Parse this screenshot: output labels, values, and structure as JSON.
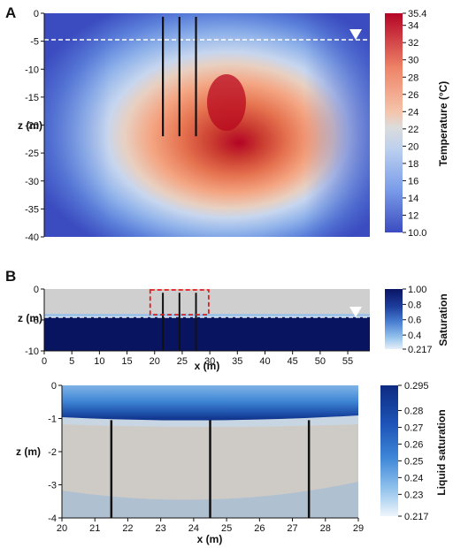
{
  "chart_data": [
    {
      "panel": "A",
      "type": "heatmap",
      "ylabel": "z (m)",
      "ylim": [
        -40,
        0
      ],
      "yticks": [
        0,
        -5,
        -10,
        -15,
        -20,
        -25,
        -30,
        -35,
        -40
      ],
      "ytick_labels": [
        "0",
        "-5",
        "-10",
        "-15",
        "-20",
        "-25",
        "-30",
        "-35",
        "-40"
      ],
      "water_table_z": -5,
      "wells": [
        {
          "x": 21.5,
          "z_bottom": -22
        },
        {
          "x": 24.5,
          "z_bottom": -22
        },
        {
          "x": 27.5,
          "z_bottom": -22
        }
      ],
      "hotspot": {
        "x": 32,
        "z": -16,
        "temperature": 35.4
      },
      "colorbar": {
        "label": "Temperature (°C)",
        "min": 10.0,
        "max": 35.4,
        "ticks": [
          35.4,
          34,
          32,
          30,
          28,
          26,
          24,
          22,
          20,
          18,
          16,
          14,
          12,
          10.0
        ],
        "tick_labels": [
          "35.4",
          "34",
          "32",
          "30",
          "28",
          "26",
          "24",
          "22",
          "20",
          "18",
          "16",
          "14",
          "12",
          "10.0"
        ]
      },
      "colors": [
        "#3b4cc0",
        "#6a8fd8",
        "#9fbfe6",
        "#d9d9d9",
        "#f4b593",
        "#e7704f",
        "#b40426"
      ]
    },
    {
      "panel": "B",
      "type": "heatmap",
      "xlabel": "x (m)",
      "ylabel": "z (m)",
      "xlim": [
        0,
        59
      ],
      "ylim": [
        -10,
        0
      ],
      "xticks": [
        0,
        5,
        10,
        15,
        20,
        25,
        30,
        35,
        40,
        45,
        50,
        55
      ],
      "xtick_labels": [
        "0",
        "5",
        "10",
        "15",
        "20",
        "25",
        "30",
        "35",
        "40",
        "45",
        "50",
        "55"
      ],
      "yticks": [
        0,
        -5,
        -10
      ],
      "ytick_labels": [
        "0",
        "-5",
        "-10"
      ],
      "water_table_z": -5,
      "wells": [
        {
          "x": 21.5
        },
        {
          "x": 24.5
        },
        {
          "x": 27.5
        }
      ],
      "zoom_box": {
        "x": [
          20,
          29
        ],
        "z": [
          -4,
          0
        ]
      },
      "colorbar": {
        "label": "Saturation",
        "min": 0.217,
        "max": 1.0,
        "ticks": [
          1.0,
          0.8,
          0.6,
          0.4,
          0.217
        ],
        "tick_labels": [
          "1.00",
          "0.8",
          "0.6",
          "0.4",
          "0.217"
        ]
      }
    },
    {
      "panel": "zoom",
      "type": "heatmap",
      "xlabel": "x (m)",
      "ylabel": "z (m)",
      "xlim": [
        20,
        29
      ],
      "ylim": [
        -4,
        0
      ],
      "xticks": [
        20,
        21,
        22,
        23,
        24,
        25,
        26,
        27,
        28,
        29
      ],
      "xtick_labels": [
        "20",
        "21",
        "22",
        "23",
        "24",
        "25",
        "26",
        "27",
        "28",
        "29"
      ],
      "yticks": [
        0,
        -1,
        -2,
        -3,
        -4
      ],
      "ytick_labels": [
        "0",
        "-1",
        "-2",
        "-3",
        "-4"
      ],
      "wells": [
        {
          "x": 21.5
        },
        {
          "x": 24.5
        },
        {
          "x": 27.5
        }
      ],
      "colorbar": {
        "label": "Liquid saturation",
        "min": 0.217,
        "max": 0.295,
        "ticks": [
          0.295,
          0.28,
          0.27,
          0.26,
          0.25,
          0.24,
          0.23,
          0.217
        ],
        "tick_labels": [
          "0.295",
          "0.28",
          "0.27",
          "0.26",
          "0.25",
          "0.24",
          "0.23",
          "0.217"
        ]
      }
    }
  ],
  "panel_labels": {
    "a": "A",
    "b": "B"
  },
  "legend_colors": {
    "temp": [
      "#3b4cc0",
      "#5977d6",
      "#7b9ff0",
      "#a5c3f7",
      "#cdd9ee",
      "#e8d6c6",
      "#f6b89a",
      "#f08f6c",
      "#e0654a",
      "#c43a2f",
      "#b40426"
    ],
    "sat": [
      "#0a1463",
      "#1e3f9e",
      "#4a7fd2",
      "#93c2ec",
      "#d9e8f5"
    ],
    "liq": [
      "#0d2a82",
      "#1e55b8",
      "#3d86d8",
      "#78b3e8",
      "#bfdaf3",
      "#e3eef9"
    ]
  }
}
